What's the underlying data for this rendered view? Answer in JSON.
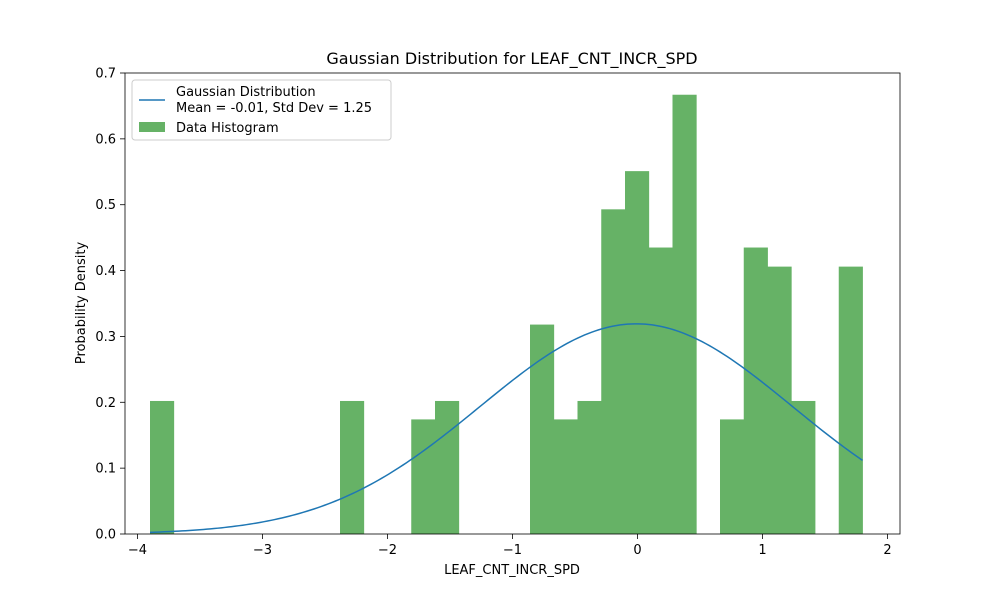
{
  "chart_data": {
    "type": "bar",
    "title": "Gaussian Distribution for LEAF_CNT_INCR_SPD",
    "xlabel": "LEAF_CNT_INCR_SPD",
    "ylabel": "Probability Density",
    "xlim": [
      -4.1,
      2.1
    ],
    "ylim": [
      0.0,
      0.7
    ],
    "x_ticks": [
      -4,
      -3,
      -2,
      -1,
      0,
      1,
      2
    ],
    "x_tick_labels": [
      "−4",
      "−3",
      "−2",
      "−1",
      "0",
      "1",
      "2"
    ],
    "y_ticks": [
      0.0,
      0.1,
      0.2,
      0.3,
      0.4,
      0.5,
      0.6,
      0.7
    ],
    "y_tick_labels": [
      "0.0",
      "0.1",
      "0.2",
      "0.3",
      "0.4",
      "0.5",
      "0.6",
      "0.7"
    ],
    "grid": false,
    "legend_position": "top-left",
    "histogram": {
      "name": "Data Histogram",
      "color": "#66b266",
      "bin_start": -3.9,
      "bin_width": 0.19,
      "densities": [
        0.202,
        0.0,
        0.0,
        0.0,
        0.0,
        0.0,
        0.0,
        0.0,
        0.202,
        0.0,
        0.0,
        0.174,
        0.202,
        0.0,
        0.0,
        0.0,
        0.318,
        0.174,
        0.202,
        0.493,
        0.551,
        0.435,
        0.667,
        0.0,
        0.174,
        0.435,
        0.406,
        0.202,
        0.0,
        0.406
      ]
    },
    "gaussian": {
      "name": "Gaussian Distribution",
      "stats_label": "Mean = -0.01, Std Dev = 1.25",
      "color": "#1f77b4",
      "mean": -0.01,
      "std_dev": 1.25,
      "x_range": [
        -3.9,
        1.8
      ]
    }
  }
}
